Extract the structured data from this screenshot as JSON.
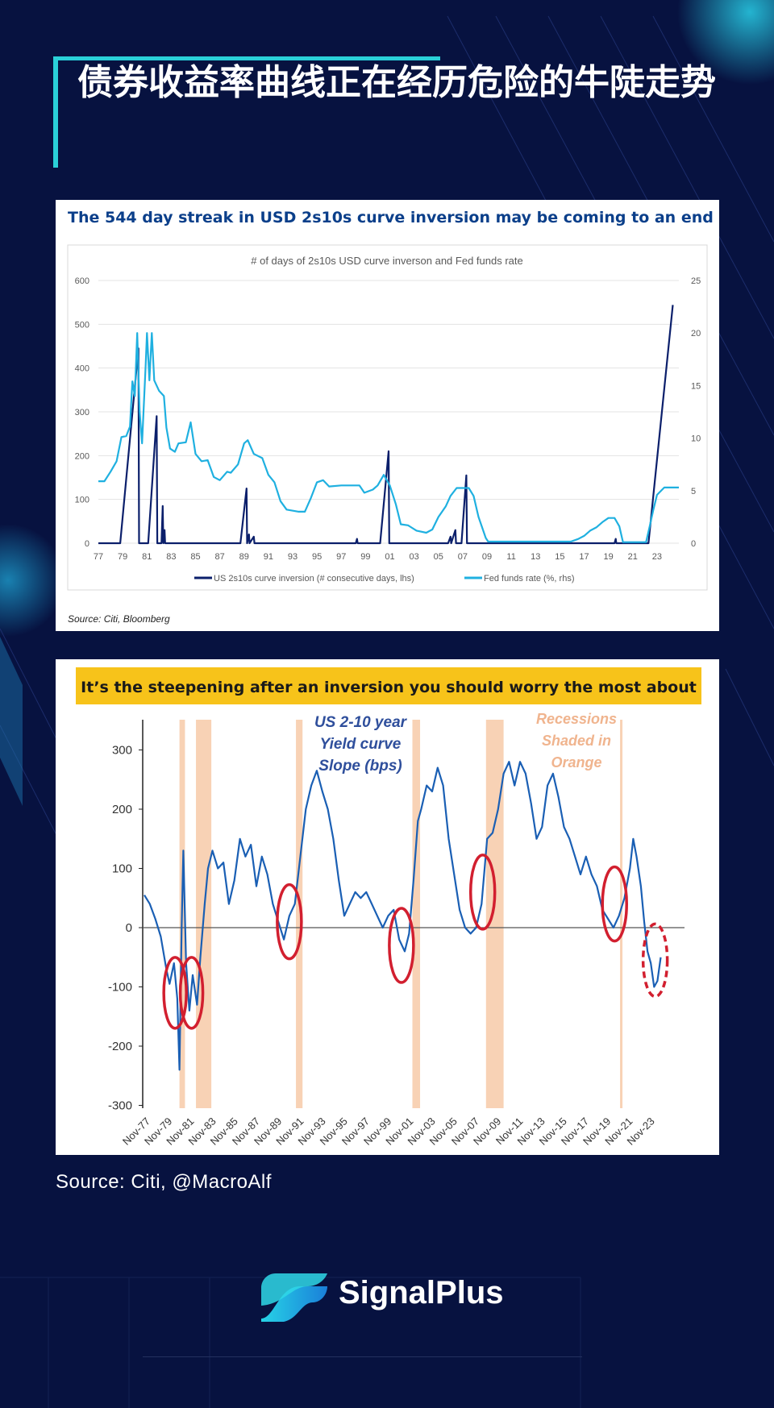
{
  "page": {
    "title": "债券收益率曲线正在经历危险的牛陡走势",
    "source_text": "Source: Citi, @MacroAlf",
    "brand": "SignalPlus",
    "colors": {
      "background": "#071240",
      "accent": "#2ad0d8",
      "navy": "#0b1f6b",
      "light_blue": "#1fb0e0"
    }
  },
  "chart_data": [
    {
      "type": "line",
      "headline": "The 544 day streak in USD 2s10s curve inversion may be coming to an end",
      "title": "# of days of 2s10s USD curve inverson and Fed funds rate",
      "source": "Source: Citi, Bloomberg",
      "x_tick_labels": [
        "77",
        "79",
        "81",
        "83",
        "85",
        "87",
        "89",
        "91",
        "93",
        "95",
        "97",
        "99",
        "01",
        "03",
        "05",
        "07",
        "09",
        "11",
        "13",
        "15",
        "17",
        "19",
        "21",
        "23"
      ],
      "xlim": [
        1977,
        2024.8
      ],
      "y_left": {
        "lim": [
          0,
          600
        ],
        "ticks": [
          "0",
          "100",
          "200",
          "300",
          "400",
          "500",
          "600"
        ]
      },
      "y_right": {
        "lim": [
          0,
          25
        ],
        "ticks": [
          "0",
          "5",
          "10",
          "15",
          "20",
          "25"
        ]
      },
      "legend": [
        "US 2s10s curve inversion (# consecutive days, lhs)",
        "Fed funds rate (%, rhs)"
      ],
      "series": [
        {
          "name": "US 2s10s curve inversion (# consecutive days, lhs)",
          "axis": "left",
          "color": "#0b1f6b",
          "points": [
            [
              1977,
              0
            ],
            [
              1978.8,
              0
            ],
            [
              1980.3,
              445
            ],
            [
              1980.35,
              0
            ],
            [
              1980.4,
              0
            ],
            [
              1981.1,
              0
            ],
            [
              1981.8,
              290
            ],
            [
              1981.85,
              0
            ],
            [
              1982.2,
              0
            ],
            [
              1982.3,
              85
            ],
            [
              1982.35,
              0
            ],
            [
              1982.45,
              30
            ],
            [
              1982.5,
              0
            ],
            [
              1988.7,
              0
            ],
            [
              1989.2,
              125
            ],
            [
              1989.25,
              0
            ],
            [
              1989.4,
              20
            ],
            [
              1989.45,
              0
            ],
            [
              1989.8,
              15
            ],
            [
              1989.85,
              0
            ],
            [
              1998.2,
              0
            ],
            [
              1998.3,
              10
            ],
            [
              1998.35,
              0
            ],
            [
              2000.2,
              0
            ],
            [
              2000.9,
              210
            ],
            [
              2000.95,
              0
            ],
            [
              2005.8,
              0
            ],
            [
              2006.0,
              15
            ],
            [
              2006.05,
              0
            ],
            [
              2006.4,
              30
            ],
            [
              2006.45,
              0
            ],
            [
              2006.9,
              0
            ],
            [
              2007.3,
              155
            ],
            [
              2007.35,
              0
            ],
            [
              2019.5,
              0
            ],
            [
              2019.6,
              10
            ],
            [
              2019.65,
              0
            ],
            [
              2022.3,
              0
            ],
            [
              2024.3,
              544
            ]
          ]
        },
        {
          "name": "Fed funds rate (%, rhs)",
          "axis": "right",
          "color": "#1fb0e0",
          "points": [
            [
              1977,
              5.9
            ],
            [
              1977.5,
              5.9
            ],
            [
              1978,
              6.8
            ],
            [
              1978.5,
              7.8
            ],
            [
              1978.9,
              10.1
            ],
            [
              1979.3,
              10.2
            ],
            [
              1979.6,
              11.1
            ],
            [
              1979.8,
              15.4
            ],
            [
              1980.0,
              14.0
            ],
            [
              1980.2,
              20.0
            ],
            [
              1980.4,
              12.5
            ],
            [
              1980.6,
              9.5
            ],
            [
              1980.9,
              17.0
            ],
            [
              1981.0,
              20.0
            ],
            [
              1981.2,
              15.5
            ],
            [
              1981.4,
              20.0
            ],
            [
              1981.6,
              15.5
            ],
            [
              1982.0,
              14.5
            ],
            [
              1982.4,
              14.0
            ],
            [
              1982.6,
              11.0
            ],
            [
              1982.9,
              9.0
            ],
            [
              1983.3,
              8.7
            ],
            [
              1983.6,
              9.5
            ],
            [
              1984.2,
              9.6
            ],
            [
              1984.6,
              11.5
            ],
            [
              1985.0,
              8.5
            ],
            [
              1985.5,
              7.8
            ],
            [
              1986.0,
              7.9
            ],
            [
              1986.5,
              6.3
            ],
            [
              1987.0,
              6.0
            ],
            [
              1987.6,
              6.8
            ],
            [
              1987.9,
              6.7
            ],
            [
              1988.5,
              7.5
            ],
            [
              1989.0,
              9.5
            ],
            [
              1989.3,
              9.8
            ],
            [
              1989.8,
              8.5
            ],
            [
              1990.5,
              8.1
            ],
            [
              1991.0,
              6.5
            ],
            [
              1991.5,
              5.8
            ],
            [
              1992.0,
              4.0
            ],
            [
              1992.5,
              3.2
            ],
            [
              1993.5,
              3.0
            ],
            [
              1994.0,
              3.0
            ],
            [
              1994.5,
              4.3
            ],
            [
              1995.0,
              5.8
            ],
            [
              1995.5,
              6.0
            ],
            [
              1996.0,
              5.4
            ],
            [
              1997.0,
              5.5
            ],
            [
              1998.5,
              5.5
            ],
            [
              1998.9,
              4.8
            ],
            [
              1999.6,
              5.1
            ],
            [
              2000.0,
              5.5
            ],
            [
              2000.5,
              6.5
            ],
            [
              2001.0,
              5.5
            ],
            [
              2001.5,
              3.7
            ],
            [
              2001.9,
              1.8
            ],
            [
              2002.5,
              1.7
            ],
            [
              2003.2,
              1.2
            ],
            [
              2004.0,
              1.0
            ],
            [
              2004.5,
              1.3
            ],
            [
              2005.0,
              2.5
            ],
            [
              2005.6,
              3.5
            ],
            [
              2006.0,
              4.5
            ],
            [
              2006.5,
              5.25
            ],
            [
              2007.5,
              5.25
            ],
            [
              2007.9,
              4.5
            ],
            [
              2008.3,
              2.5
            ],
            [
              2008.9,
              0.5
            ],
            [
              2009.1,
              0.15
            ],
            [
              2015.9,
              0.15
            ],
            [
              2016.5,
              0.4
            ],
            [
              2017.0,
              0.7
            ],
            [
              2017.5,
              1.2
            ],
            [
              2018.0,
              1.5
            ],
            [
              2018.5,
              2.0
            ],
            [
              2019.0,
              2.4
            ],
            [
              2019.5,
              2.4
            ],
            [
              2019.9,
              1.6
            ],
            [
              2020.2,
              0.1
            ],
            [
              2022.1,
              0.1
            ],
            [
              2022.4,
              1.6
            ],
            [
              2022.7,
              3.2
            ],
            [
              2023.0,
              4.6
            ],
            [
              2023.6,
              5.3
            ],
            [
              2024.8,
              5.3
            ]
          ]
        }
      ]
    },
    {
      "type": "line",
      "headline": "It’s the steepening after an inversion you should worry the most about",
      "annotation": [
        "US 2-10 year",
        "Yield curve",
        "Slope (bps)"
      ],
      "recession_note": [
        "Recessions",
        "Shaded in",
        "Orange"
      ],
      "xlim": [
        1976.8,
        2024.5
      ],
      "ylim": [
        -300,
        350
      ],
      "y_ticks": [
        "300",
        "200",
        "100",
        "0",
        "-100",
        "-200",
        "-300"
      ],
      "x_tick_labels": [
        "Nov-77",
        "Nov-79",
        "Nov-81",
        "Nov-83",
        "Nov-85",
        "Nov-87",
        "Nov-89",
        "Nov-91",
        "Nov-93",
        "Nov-95",
        "Nov-97",
        "Nov-99",
        "Nov-01",
        "Nov-03",
        "Nov-05",
        "Nov-07",
        "Nov-09",
        "Nov-11",
        "Nov-13",
        "Nov-15",
        "Nov-17",
        "Nov-19",
        "Nov-21",
        "Nov-23"
      ],
      "recessions": [
        [
          1980.0,
          1980.5
        ],
        [
          1981.5,
          1982.9
        ],
        [
          1990.6,
          1991.2
        ],
        [
          2001.2,
          2001.9
        ],
        [
          2007.9,
          2009.5
        ],
        [
          2020.1,
          2020.3
        ]
      ],
      "highlight_circles": [
        [
          1979.6,
          -110
        ],
        [
          1981.1,
          -110
        ],
        [
          1990.0,
          10
        ],
        [
          2000.2,
          -30
        ],
        [
          2007.6,
          60
        ],
        [
          2019.6,
          40
        ],
        [
          2023.3,
          -55
        ]
      ],
      "series": [
        {
          "name": "US 2-10 year Yield curve Slope (bps)",
          "color": "#1a5fb4",
          "points": [
            [
              1976.8,
              55
            ],
            [
              1977.3,
              40
            ],
            [
              1977.8,
              15
            ],
            [
              1978.3,
              -15
            ],
            [
              1978.8,
              -70
            ],
            [
              1979.1,
              -95
            ],
            [
              1979.5,
              -60
            ],
            [
              1979.8,
              -120
            ],
            [
              1980.0,
              -240
            ],
            [
              1980.2,
              0
            ],
            [
              1980.35,
              130
            ],
            [
              1980.6,
              -60
            ],
            [
              1980.9,
              -140
            ],
            [
              1981.2,
              -80
            ],
            [
              1981.6,
              -130
            ],
            [
              1981.9,
              -50
            ],
            [
              1982.3,
              40
            ],
            [
              1982.6,
              100
            ],
            [
              1983.0,
              130
            ],
            [
              1983.5,
              100
            ],
            [
              1984.0,
              110
            ],
            [
              1984.5,
              40
            ],
            [
              1985.0,
              80
            ],
            [
              1985.5,
              150
            ],
            [
              1986.0,
              120
            ],
            [
              1986.5,
              140
            ],
            [
              1987.0,
              70
            ],
            [
              1987.5,
              120
            ],
            [
              1988.0,
              90
            ],
            [
              1988.5,
              40
            ],
            [
              1989.0,
              10
            ],
            [
              1989.5,
              -20
            ],
            [
              1990.0,
              20
            ],
            [
              1990.5,
              40
            ],
            [
              1991.0,
              120
            ],
            [
              1991.5,
              200
            ],
            [
              1992.0,
              240
            ],
            [
              1992.5,
              265
            ],
            [
              1993.0,
              230
            ],
            [
              1993.5,
              200
            ],
            [
              1994.0,
              150
            ],
            [
              1994.5,
              80
            ],
            [
              1995.0,
              20
            ],
            [
              1995.5,
              40
            ],
            [
              1996.0,
              60
            ],
            [
              1996.5,
              50
            ],
            [
              1997.0,
              60
            ],
            [
              1997.5,
              40
            ],
            [
              1998.0,
              20
            ],
            [
              1998.5,
              0
            ],
            [
              1999.0,
              20
            ],
            [
              1999.5,
              30
            ],
            [
              2000.0,
              -20
            ],
            [
              2000.5,
              -40
            ],
            [
              2000.9,
              -10
            ],
            [
              2001.3,
              80
            ],
            [
              2001.7,
              180
            ],
            [
              2002.0,
              200
            ],
            [
              2002.5,
              240
            ],
            [
              2003.0,
              230
            ],
            [
              2003.5,
              270
            ],
            [
              2004.0,
              240
            ],
            [
              2004.5,
              150
            ],
            [
              2005.0,
              90
            ],
            [
              2005.5,
              30
            ],
            [
              2006.0,
              0
            ],
            [
              2006.5,
              -10
            ],
            [
              2007.0,
              0
            ],
            [
              2007.5,
              40
            ],
            [
              2008.0,
              150
            ],
            [
              2008.5,
              160
            ],
            [
              2009.0,
              200
            ],
            [
              2009.5,
              260
            ],
            [
              2010.0,
              280
            ],
            [
              2010.5,
              240
            ],
            [
              2011.0,
              280
            ],
            [
              2011.5,
              260
            ],
            [
              2012.0,
              210
            ],
            [
              2012.5,
              150
            ],
            [
              2013.0,
              170
            ],
            [
              2013.5,
              240
            ],
            [
              2014.0,
              260
            ],
            [
              2014.5,
              220
            ],
            [
              2015.0,
              170
            ],
            [
              2015.5,
              150
            ],
            [
              2016.0,
              120
            ],
            [
              2016.5,
              90
            ],
            [
              2017.0,
              120
            ],
            [
              2017.5,
              90
            ],
            [
              2018.0,
              70
            ],
            [
              2018.5,
              30
            ],
            [
              2019.0,
              15
            ],
            [
              2019.5,
              0
            ],
            [
              2020.0,
              20
            ],
            [
              2020.5,
              50
            ],
            [
              2021.0,
              100
            ],
            [
              2021.3,
              150
            ],
            [
              2021.6,
              120
            ],
            [
              2022.0,
              70
            ],
            [
              2022.3,
              10
            ],
            [
              2022.6,
              -40
            ],
            [
              2022.9,
              -60
            ],
            [
              2023.2,
              -100
            ],
            [
              2023.5,
              -90
            ],
            [
              2023.8,
              -50
            ]
          ]
        }
      ]
    }
  ]
}
